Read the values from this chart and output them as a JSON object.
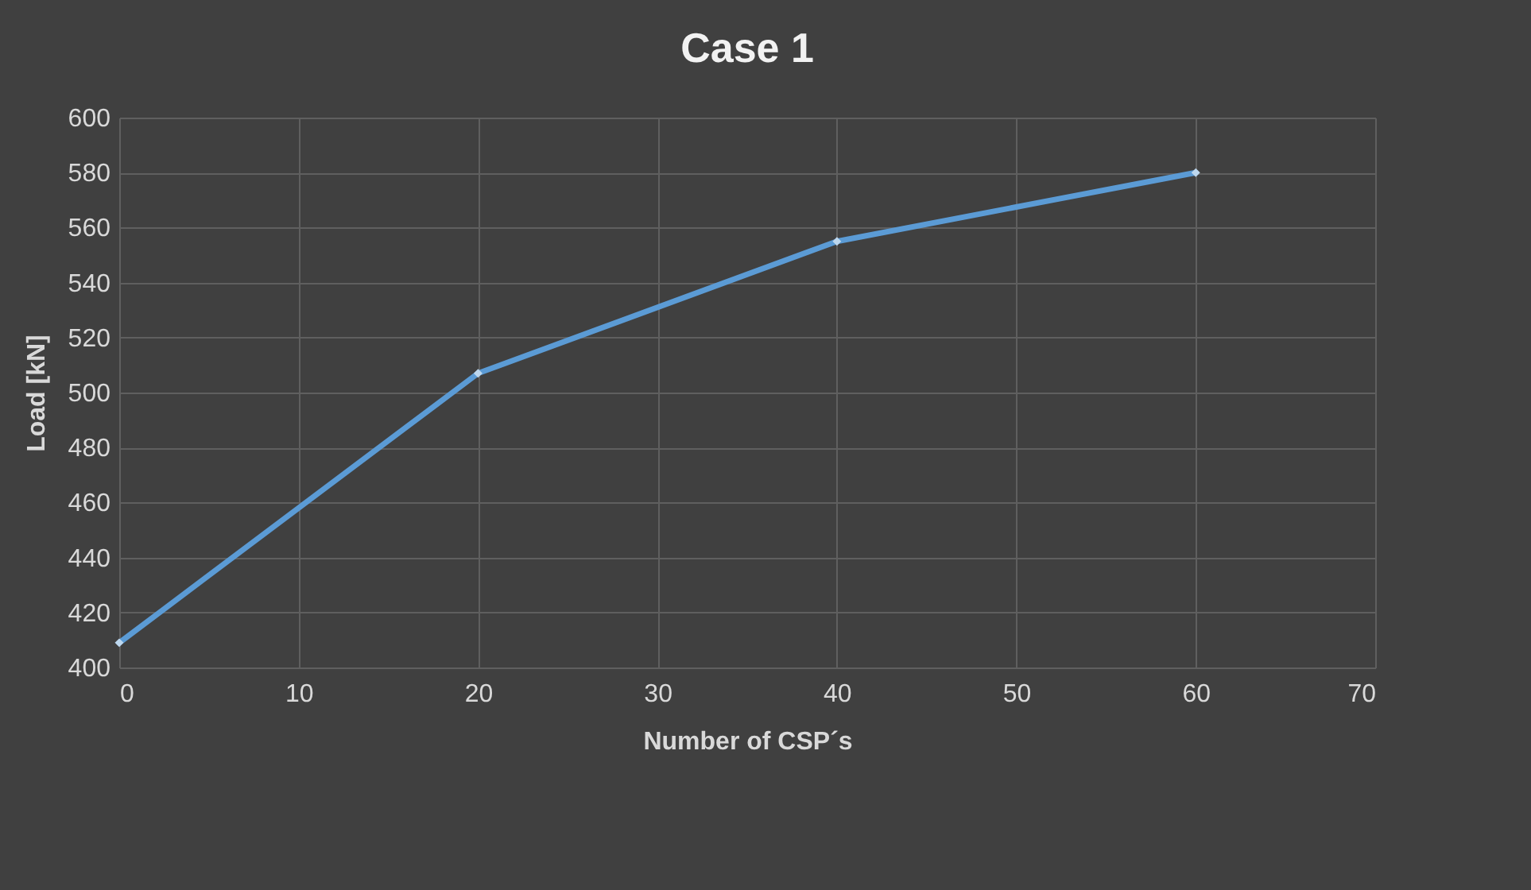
{
  "chart_data": {
    "type": "line",
    "title": "Case 1",
    "xlabel": "Number of CSP´s",
    "ylabel": "Load [kN]",
    "x": [
      0,
      20,
      40,
      60
    ],
    "series": [
      {
        "color": "#5b9bd5",
        "values": [
          409,
          507,
          555,
          580
        ]
      }
    ],
    "xlim": [
      0,
      70
    ],
    "xticks": [
      0,
      10,
      20,
      30,
      40,
      50,
      60,
      70
    ],
    "ylim": [
      400,
      600
    ],
    "yticks": [
      400,
      420,
      440,
      460,
      480,
      500,
      520,
      540,
      560,
      580,
      600
    ],
    "grid": true,
    "marker": "diamond",
    "line_style": "solid"
  }
}
